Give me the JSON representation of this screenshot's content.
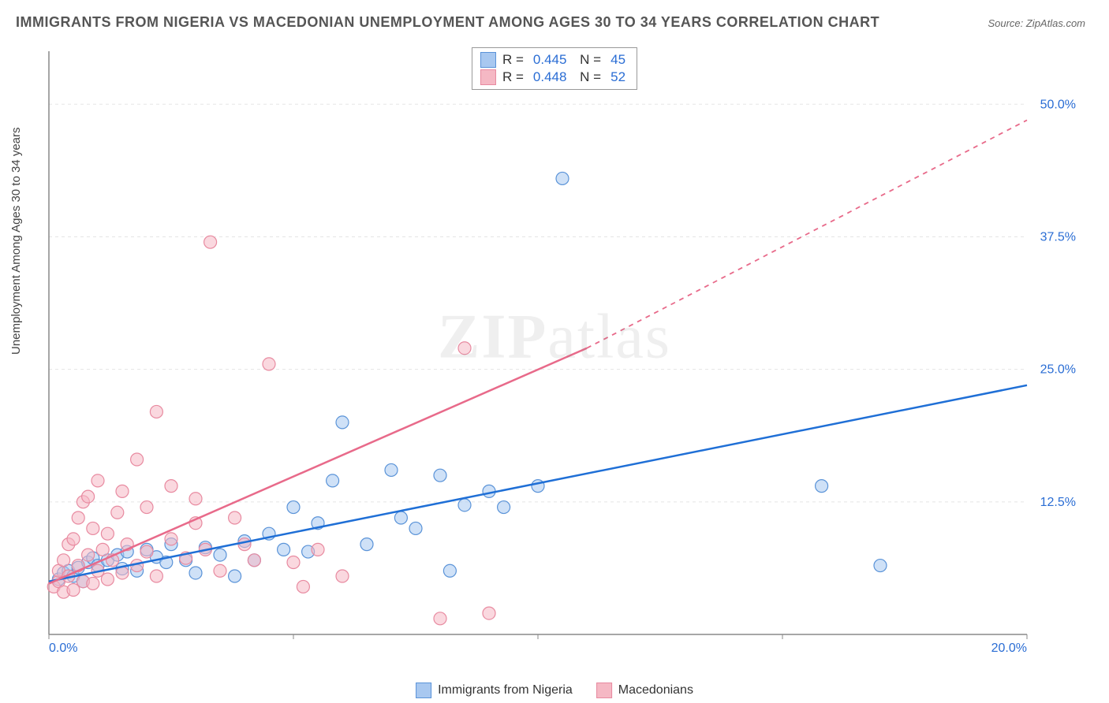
{
  "title": "IMMIGRANTS FROM NIGERIA VS MACEDONIAN UNEMPLOYMENT AMONG AGES 30 TO 34 YEARS CORRELATION CHART",
  "source": "Source: ZipAtlas.com",
  "ylabel": "Unemployment Among Ages 30 to 34 years",
  "watermark": {
    "prefix": "ZIP",
    "suffix": "atlas"
  },
  "chart": {
    "type": "scatter",
    "xlim": [
      0,
      20
    ],
    "ylim": [
      0,
      55
    ],
    "x_ticks": [
      0,
      5,
      10,
      15,
      20
    ],
    "x_tick_labels": {
      "0": "0.0%",
      "20": "20.0%"
    },
    "y_ticks": [
      12.5,
      25.0,
      37.5,
      50.0
    ],
    "y_tick_labels": [
      "12.5%",
      "25.0%",
      "37.5%",
      "50.0%"
    ],
    "grid_color": "#e5e5e5",
    "axis_color": "#888",
    "background": "#ffffff",
    "marker_radius": 8,
    "marker_opacity": 0.55,
    "line_width": 2.5,
    "series": [
      {
        "name": "Immigrants from Nigeria",
        "color_fill": "#a8c8f0",
        "color_stroke": "#5a93d8",
        "line_color": "#1f6fd6",
        "R": "0.445",
        "N": "45",
        "trend": {
          "x1": 0,
          "y1": 5.0,
          "x2": 20,
          "y2": 23.5,
          "dash": false
        },
        "points": [
          [
            0.2,
            5.2
          ],
          [
            0.3,
            5.8
          ],
          [
            0.4,
            6.0
          ],
          [
            0.5,
            5.5
          ],
          [
            0.6,
            6.3
          ],
          [
            0.7,
            5.0
          ],
          [
            0.8,
            6.8
          ],
          [
            0.9,
            7.2
          ],
          [
            1.0,
            6.5
          ],
          [
            1.2,
            7.0
          ],
          [
            1.4,
            7.5
          ],
          [
            1.5,
            6.2
          ],
          [
            1.6,
            7.8
          ],
          [
            1.8,
            6.0
          ],
          [
            2.0,
            8.0
          ],
          [
            2.2,
            7.3
          ],
          [
            2.4,
            6.8
          ],
          [
            2.5,
            8.5
          ],
          [
            2.8,
            7.0
          ],
          [
            3.0,
            5.8
          ],
          [
            3.2,
            8.2
          ],
          [
            3.5,
            7.5
          ],
          [
            3.8,
            5.5
          ],
          [
            4.0,
            8.8
          ],
          [
            4.2,
            7.0
          ],
          [
            4.5,
            9.5
          ],
          [
            4.8,
            8.0
          ],
          [
            5.0,
            12.0
          ],
          [
            5.3,
            7.8
          ],
          [
            5.5,
            10.5
          ],
          [
            5.8,
            14.5
          ],
          [
            6.0,
            20.0
          ],
          [
            6.5,
            8.5
          ],
          [
            7.0,
            15.5
          ],
          [
            7.2,
            11.0
          ],
          [
            7.5,
            10.0
          ],
          [
            8.0,
            15.0
          ],
          [
            8.2,
            6.0
          ],
          [
            8.5,
            12.2
          ],
          [
            9.0,
            13.5
          ],
          [
            9.3,
            12.0
          ],
          [
            10.0,
            14.0
          ],
          [
            10.5,
            43.0
          ],
          [
            15.8,
            14.0
          ],
          [
            17.0,
            6.5
          ]
        ]
      },
      {
        "name": "Macedonians",
        "color_fill": "#f5b8c4",
        "color_stroke": "#e88aa0",
        "line_color": "#e86a8a",
        "R": "0.448",
        "N": "52",
        "trend": {
          "x1": 0,
          "y1": 4.8,
          "x2": 11,
          "y2": 27.0,
          "dash": false,
          "ext_x2": 20,
          "ext_y2": 48.5
        },
        "points": [
          [
            0.1,
            4.5
          ],
          [
            0.2,
            5.0
          ],
          [
            0.2,
            6.0
          ],
          [
            0.3,
            4.0
          ],
          [
            0.3,
            7.0
          ],
          [
            0.4,
            5.5
          ],
          [
            0.4,
            8.5
          ],
          [
            0.5,
            4.2
          ],
          [
            0.5,
            9.0
          ],
          [
            0.6,
            6.5
          ],
          [
            0.6,
            11.0
          ],
          [
            0.7,
            5.0
          ],
          [
            0.7,
            12.5
          ],
          [
            0.8,
            7.5
          ],
          [
            0.8,
            13.0
          ],
          [
            0.9,
            4.8
          ],
          [
            0.9,
            10.0
          ],
          [
            1.0,
            6.0
          ],
          [
            1.0,
            14.5
          ],
          [
            1.1,
            8.0
          ],
          [
            1.2,
            5.2
          ],
          [
            1.2,
            9.5
          ],
          [
            1.3,
            7.0
          ],
          [
            1.4,
            11.5
          ],
          [
            1.5,
            5.8
          ],
          [
            1.5,
            13.5
          ],
          [
            1.6,
            8.5
          ],
          [
            1.8,
            6.5
          ],
          [
            1.8,
            16.5
          ],
          [
            2.0,
            7.8
          ],
          [
            2.0,
            12.0
          ],
          [
            2.2,
            5.5
          ],
          [
            2.2,
            21.0
          ],
          [
            2.5,
            9.0
          ],
          [
            2.5,
            14.0
          ],
          [
            2.8,
            7.2
          ],
          [
            3.0,
            10.5
          ],
          [
            3.0,
            12.8
          ],
          [
            3.2,
            8.0
          ],
          [
            3.3,
            37.0
          ],
          [
            3.5,
            6.0
          ],
          [
            3.8,
            11.0
          ],
          [
            4.0,
            8.5
          ],
          [
            4.2,
            7.0
          ],
          [
            4.5,
            25.5
          ],
          [
            5.0,
            6.8
          ],
          [
            5.2,
            4.5
          ],
          [
            5.5,
            8.0
          ],
          [
            6.0,
            5.5
          ],
          [
            8.0,
            1.5
          ],
          [
            8.5,
            27.0
          ],
          [
            9.0,
            2.0
          ]
        ]
      }
    ]
  },
  "bottom_legend": [
    {
      "label": "Immigrants from Nigeria",
      "fill": "#a8c8f0",
      "stroke": "#5a93d8"
    },
    {
      "label": "Macedonians",
      "fill": "#f5b8c4",
      "stroke": "#e88aa0"
    }
  ]
}
